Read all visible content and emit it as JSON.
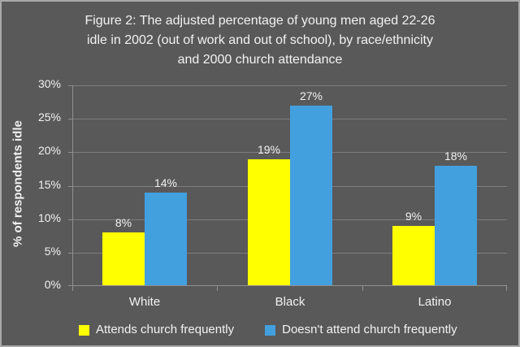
{
  "colors": {
    "background": "#595959",
    "frame_border": "#a9a9a9",
    "gridline": "#7d7d7d",
    "axis_line": "#909090",
    "text": "#f2f2f2",
    "series_yellow": "#ffff00",
    "series_blue": "#42a0de"
  },
  "chart_data": {
    "type": "bar",
    "title": "Figure 2: The adjusted percentage of young men aged 22-26 idle in 2002 (out of work and out of school), by race/ethnicity and 2000 church attendance",
    "title_lines": [
      "Figure 2: The adjusted percentage of young men aged 22-26",
      "idle in 2002 (out of work and out of school), by race/ethnicity",
      "and 2000 church attendance"
    ],
    "xlabel": "",
    "ylabel": "% of respondents idle",
    "categories": [
      "White",
      "Black",
      "Latino"
    ],
    "series": [
      {
        "name": "Attends church frequently",
        "color": "#ffff00",
        "values": [
          8,
          19,
          9
        ],
        "value_labels": [
          "8%",
          "19%",
          "9%"
        ]
      },
      {
        "name": "Doesn't attend church frequently",
        "color": "#42a0de",
        "values": [
          14,
          27,
          18
        ],
        "value_labels": [
          "14%",
          "27%",
          "18%"
        ]
      }
    ],
    "ylim": [
      0,
      30
    ],
    "ytick_step": 5,
    "ytick_labels": [
      "0%",
      "5%",
      "10%",
      "15%",
      "20%",
      "25%",
      "30%"
    ],
    "grid": true,
    "legend_position": "bottom"
  }
}
